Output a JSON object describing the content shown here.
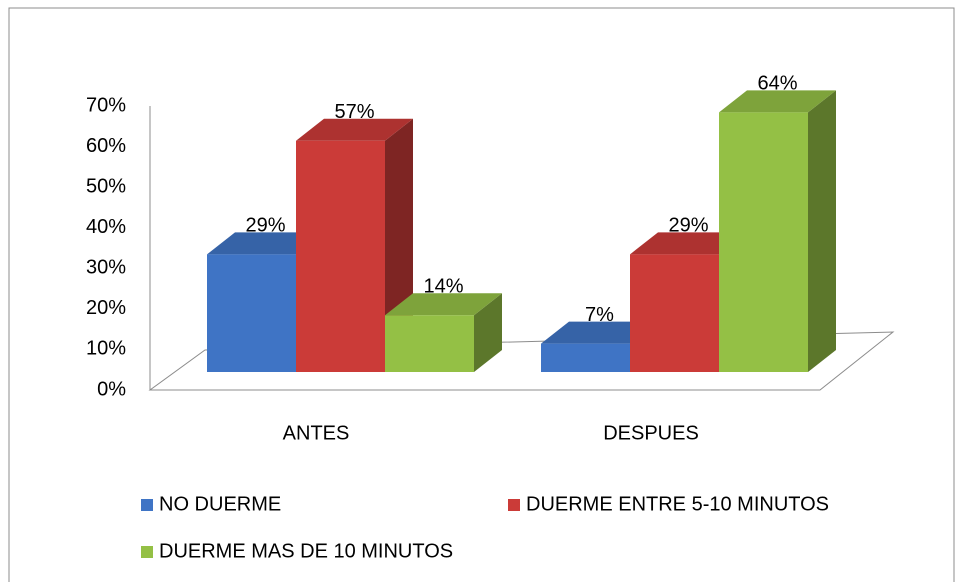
{
  "chart_data": {
    "type": "bar3d",
    "categories": [
      "ANTES",
      "DESPUES"
    ],
    "series": [
      {
        "name": "NO DUERME",
        "color": "#3f74c5",
        "values": [
          29,
          7
        ],
        "value_labels": [
          "29%",
          "7%"
        ]
      },
      {
        "name": "DUERME ENTRE 5-10 MINUTOS",
        "color": "#cb3b38",
        "values": [
          57,
          29
        ],
        "value_labels": [
          "57%",
          "29%"
        ]
      },
      {
        "name": "DUERME MAS DE 10 MINUTOS",
        "color": "#94c045",
        "values": [
          14,
          64
        ],
        "value_labels": [
          "14%",
          "64%"
        ]
      }
    ],
    "ylim": [
      0,
      70
    ],
    "yticks": [
      {
        "value": 0,
        "label": "0%"
      },
      {
        "value": 10,
        "label": "10%"
      },
      {
        "value": 20,
        "label": "20%"
      },
      {
        "value": 30,
        "label": "30%"
      },
      {
        "value": 40,
        "label": "40%"
      },
      {
        "value": 50,
        "label": "50%"
      },
      {
        "value": 60,
        "label": "60%"
      },
      {
        "value": 70,
        "label": "70%"
      }
    ],
    "legend": "bottom"
  }
}
